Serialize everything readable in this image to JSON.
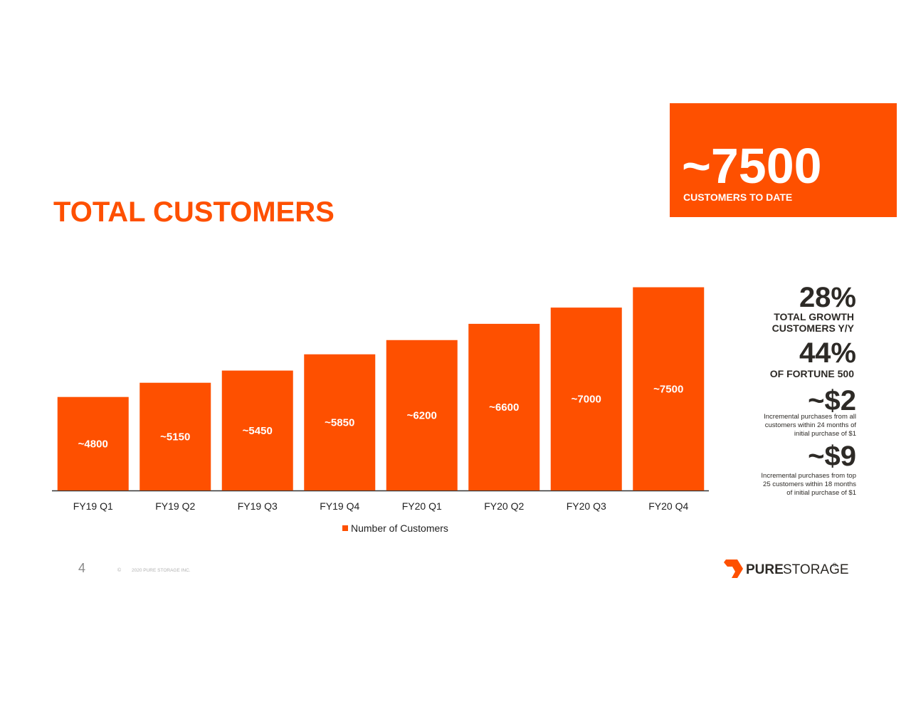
{
  "chart_data": {
    "type": "bar",
    "title": "TOTAL CUSTOMERS",
    "categories": [
      "FY19 Q1",
      "FY19 Q2",
      "FY19 Q3",
      "FY19 Q4",
      "FY20 Q1",
      "FY20 Q2",
      "FY20 Q3",
      "FY20 Q4"
    ],
    "series": [
      {
        "name": "Number of Customers",
        "color": "#fe5000",
        "values": [
          4800,
          5150,
          5450,
          5850,
          6200,
          6600,
          7000,
          7500
        ],
        "value_labels": [
          "~4800",
          "~5150",
          "~5450",
          "~5850",
          "~6200",
          "~6600",
          "~7000",
          "~7500"
        ]
      }
    ],
    "ylim": [
      2500,
      8000
    ]
  },
  "callout": {
    "value": "~7500",
    "label": "CUSTOMERS TO DATE"
  },
  "stats": [
    {
      "value": "28%",
      "lines": [
        "TOTAL GROWTH",
        "CUSTOMERS Y/Y"
      ]
    },
    {
      "value": "44%",
      "lines": [
        "OF FORTUNE 500"
      ]
    },
    {
      "value": "~$2",
      "lines": [
        "Incremental purchases from all",
        "customers within 24 months of",
        "initial purchase of $1"
      ]
    },
    {
      "value": "~$9",
      "lines": [
        "Incremental purchases from top",
        "25 customers within 18 months",
        "of initial purchase of $1"
      ]
    }
  ],
  "footer": {
    "page": "4",
    "copyright_symbol": "©",
    "copyright": "2020 PURE STORAGE INC.",
    "logo": {
      "bold": "PURE",
      "light": "STORAGE",
      "mark": "®"
    }
  }
}
